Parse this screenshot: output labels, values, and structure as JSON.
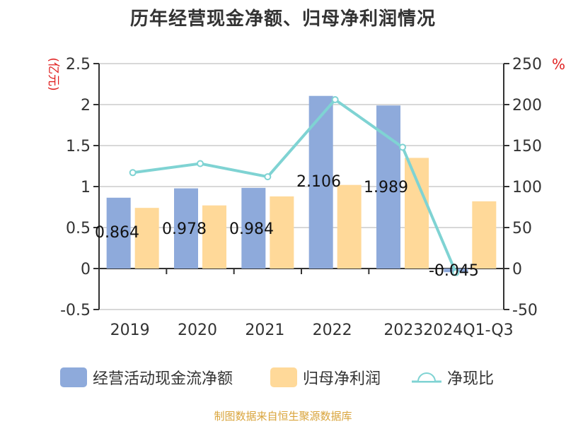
{
  "title": "历年经营现金净额、归母净利润情况",
  "source": "制图数据来自恒生聚源数据库",
  "left_axis": {
    "unit": "(亿元)",
    "ticks": [
      "2.5",
      "2",
      "1.5",
      "1",
      "0.5",
      "0",
      "-0.5"
    ]
  },
  "right_axis": {
    "unit": "%",
    "ticks": [
      "250",
      "200",
      "150",
      "100",
      "50",
      "0",
      "-50"
    ]
  },
  "legend": [
    {
      "label": "经营活动现金流净额",
      "color": "#8eaadb"
    },
    {
      "label": "归母净利润",
      "color": "#ffd999"
    },
    {
      "label": "净现比",
      "color": "#7fd3d3"
    }
  ],
  "chart_data": {
    "type": "bar",
    "title": "历年经营现金净额、归母净利润情况",
    "categories": [
      "2019",
      "2020",
      "2021",
      "2022",
      "2023",
      "2024Q1-Q3"
    ],
    "series": [
      {
        "name": "经营活动现金流净额",
        "axis": "left",
        "values": [
          0.864,
          0.978,
          0.984,
          2.106,
          1.989,
          -0.045
        ],
        "labels": [
          "0.864",
          "0.978",
          "0.984",
          "2.106",
          "1.989",
          "-0.045"
        ]
      },
      {
        "name": "归母净利润",
        "axis": "left",
        "values": [
          0.74,
          0.77,
          0.88,
          1.02,
          1.35,
          0.82
        ]
      },
      {
        "name": "净现比",
        "axis": "right",
        "type": "line",
        "values": [
          117,
          128,
          112,
          206,
          148,
          -5
        ]
      }
    ],
    "ylabel": "(亿元)",
    "ylim": [
      -0.5,
      2.5
    ],
    "y2label": "%",
    "y2lim": [
      -50,
      250
    ],
    "grid": true,
    "legend_position": "bottom"
  }
}
